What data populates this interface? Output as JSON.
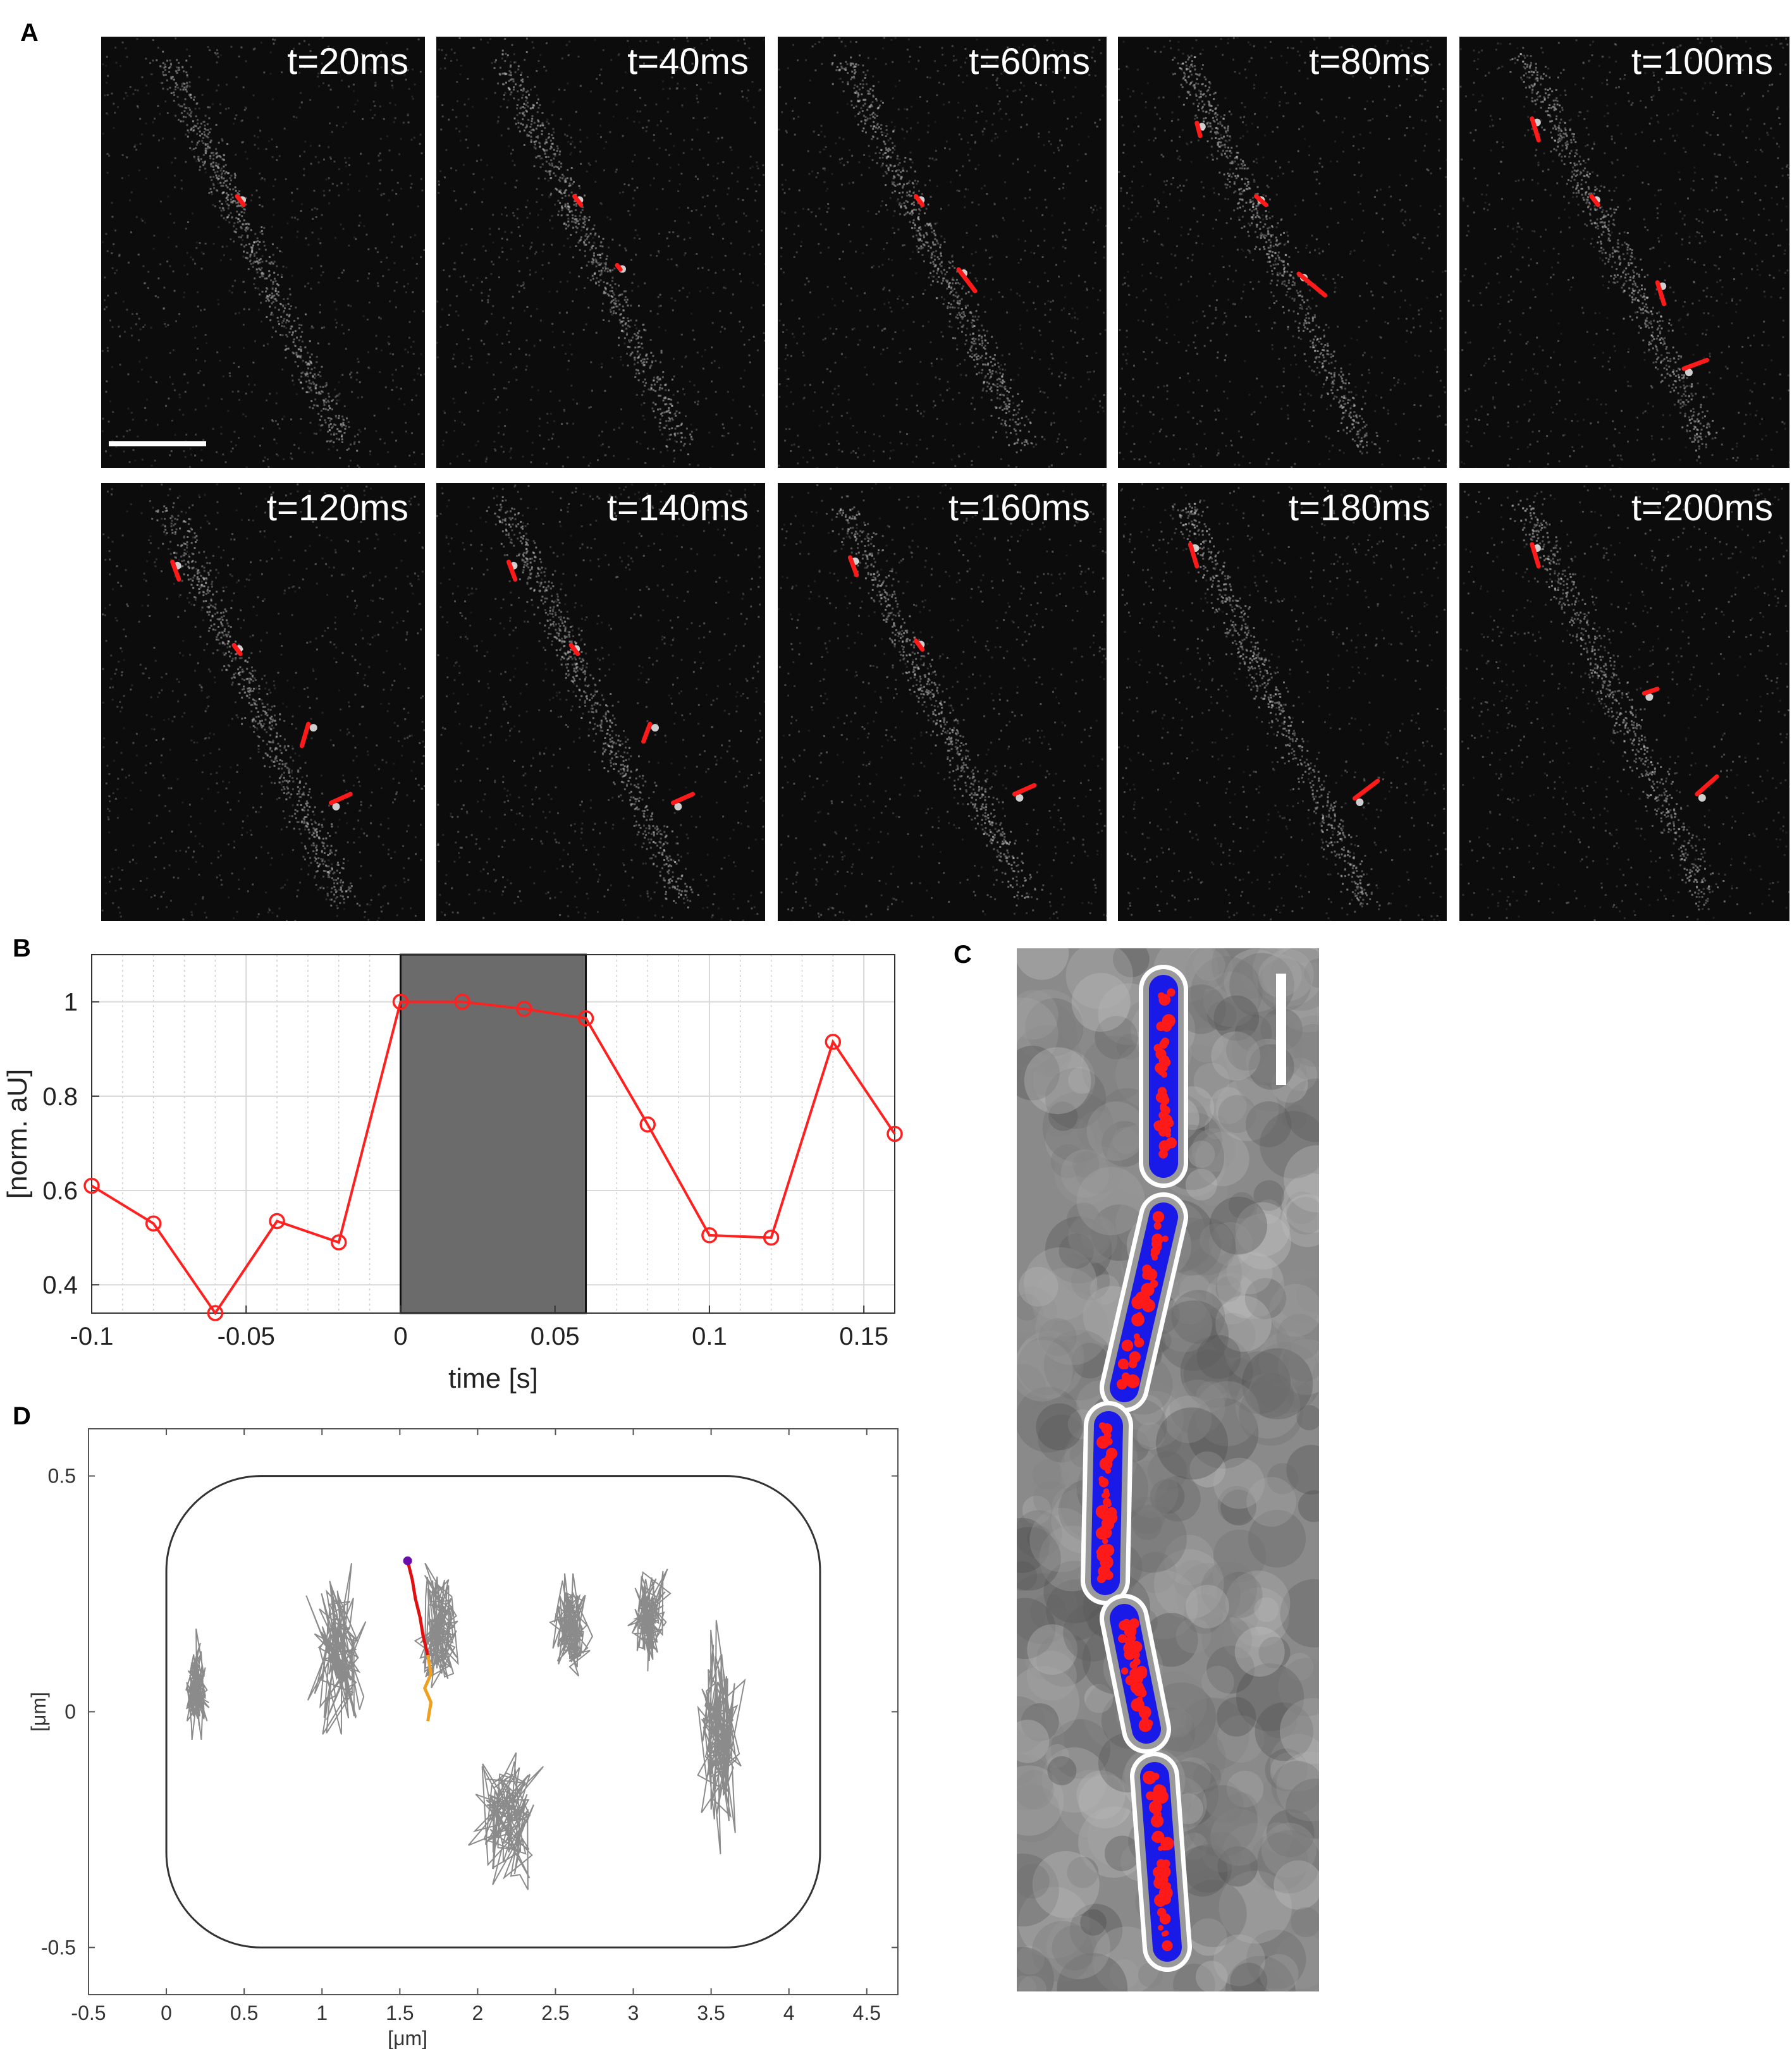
{
  "panels": {
    "a": "A",
    "b": "B",
    "c": "C",
    "d": "D"
  },
  "frames": {
    "labels": [
      "t=20ms",
      "t=40ms",
      "t=60ms",
      "t=80ms",
      "t=100ms",
      "t=120ms",
      "t=140ms",
      "t=160ms",
      "t=180ms",
      "t=200ms"
    ],
    "track_color": "#ff1a1a"
  },
  "chart_data": [
    {
      "type": "line",
      "panel": "B",
      "xlabel": "time [s]",
      "ylabel": "[norm. aU]",
      "xlim": [
        -0.1,
        0.16
      ],
      "ylim": [
        0.34,
        1.1
      ],
      "xticks": [
        "-0.1",
        "-0.05",
        "0",
        "0.05",
        "0.1",
        "0.15"
      ],
      "yticks": [
        "0.4",
        "0.6",
        "0.8",
        "1"
      ],
      "grid": true,
      "shaded_interval": [
        0,
        0.06
      ],
      "shade_color": "#6b6b6b",
      "series": [
        {
          "color": "#ff2020",
          "marker": "circle",
          "x": [
            -0.1,
            -0.08,
            -0.06,
            -0.04,
            -0.02,
            0,
            0.02,
            0.04,
            0.06,
            0.08,
            0.1,
            0.12,
            0.14,
            0.16
          ],
          "y": [
            0.61,
            0.53,
            0.34,
            0.535,
            0.49,
            1.0,
            1.0,
            0.985,
            0.965,
            0.74,
            0.505,
            0.5,
            0.915,
            0.72
          ]
        }
      ]
    },
    {
      "type": "scatter",
      "panel": "D",
      "xlabel": "[μm]",
      "ylabel": "[μm]",
      "xlim": [
        -0.5,
        4.7
      ],
      "ylim": [
        -0.6,
        0.6
      ],
      "xticks": [
        "-0.5",
        "0",
        "0.5",
        "1",
        "1.5",
        "2",
        "2.5",
        "3",
        "3.5",
        "4",
        "4.5"
      ],
      "yticks": [
        "-0.5",
        "0",
        "0.5"
      ],
      "cell_outline": {
        "xmin": 0,
        "xmax": 4.2,
        "ymin": -0.5,
        "ymax": 0.5
      },
      "trajectory_clusters": [
        {
          "x": 0.2,
          "y": 0.05,
          "spread_x": 0.08,
          "spread_y": 0.12
        },
        {
          "x": 1.1,
          "y": 0.12,
          "spread_x": 0.2,
          "spread_y": 0.2
        },
        {
          "x": 1.75,
          "y": 0.18,
          "spread_x": 0.15,
          "spread_y": 0.15
        },
        {
          "x": 2.2,
          "y": -0.22,
          "spread_x": 0.25,
          "spread_y": 0.17
        },
        {
          "x": 2.6,
          "y": 0.18,
          "spread_x": 0.13,
          "spread_y": 0.12
        },
        {
          "x": 3.1,
          "y": 0.2,
          "spread_x": 0.15,
          "spread_y": 0.12
        },
        {
          "x": 3.55,
          "y": -0.05,
          "spread_x": 0.16,
          "spread_y": 0.25
        }
      ],
      "highlight_track": {
        "colors": [
          "#e01010",
          "#f0a020",
          "#6a0dad"
        ],
        "x": [
          1.55,
          1.58,
          1.6,
          1.63,
          1.65,
          1.68,
          1.7,
          1.66,
          1.7,
          1.68
        ],
        "y": [
          0.32,
          0.28,
          0.24,
          0.2,
          0.16,
          0.12,
          0.08,
          0.05,
          0.02,
          -0.02
        ]
      }
    }
  ]
}
